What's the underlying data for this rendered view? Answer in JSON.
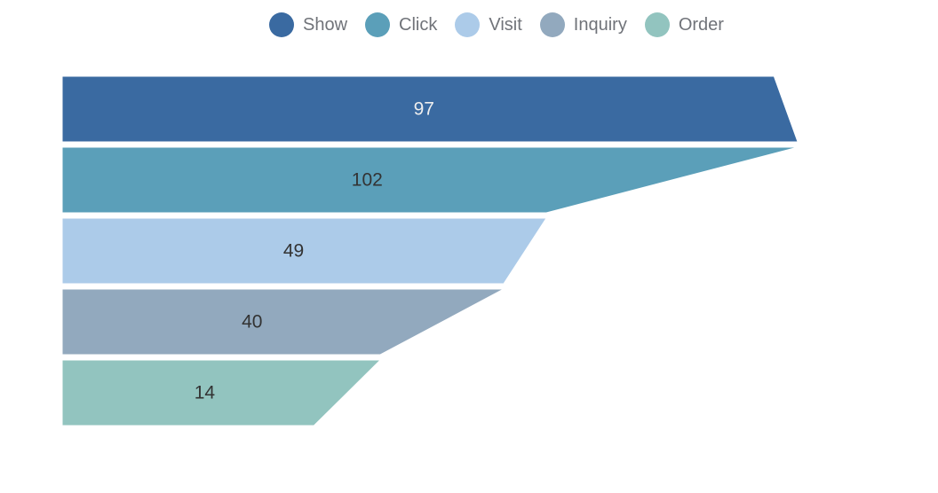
{
  "chart_data": {
    "type": "funnel",
    "title": "",
    "align": "left",
    "sort": "none",
    "value_labels_inside": true,
    "background_color": "#ffffff",
    "legend": {
      "position": "top",
      "shape": "circle",
      "text_color": "#707379",
      "entries": [
        "Show",
        "Click",
        "Visit",
        "Inquiry",
        "Order"
      ]
    },
    "items": [
      {
        "label": "Show",
        "value": 97,
        "color": "#3A6AA1",
        "value_label_color": "#EEEEEE"
      },
      {
        "label": "Click",
        "value": 102,
        "color": "#5B9FB9",
        "value_label_color": "#333333"
      },
      {
        "label": "Visit",
        "value": 49,
        "color": "#ACCBE9",
        "value_label_color": "#333333"
      },
      {
        "label": "Inquiry",
        "value": 40,
        "color": "#92A9BE",
        "value_label_color": "#333333"
      },
      {
        "label": "Order",
        "value": 14,
        "color": "#92C4BF",
        "value_label_color": "#333333"
      }
    ]
  }
}
